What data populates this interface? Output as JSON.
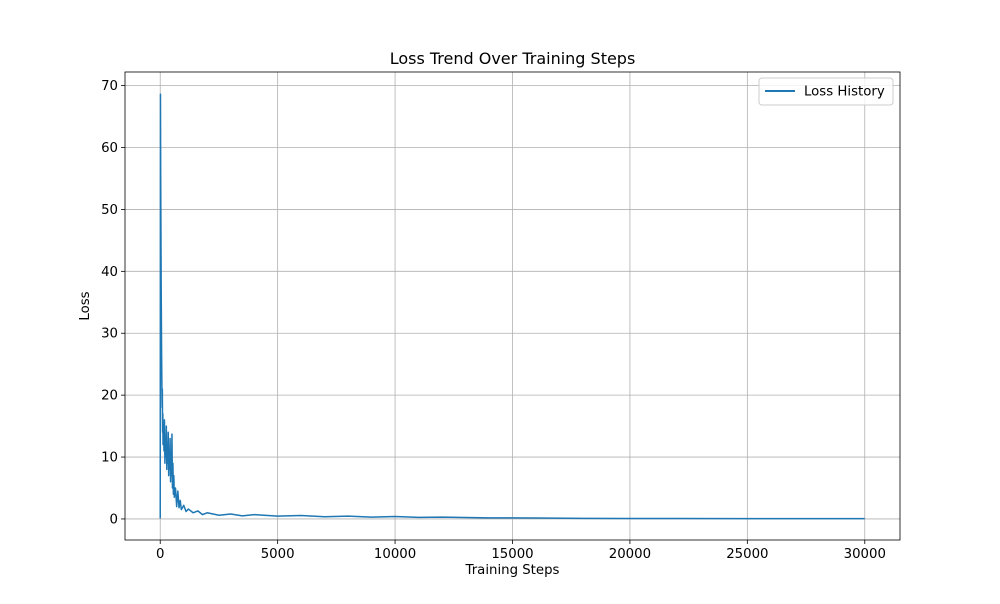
{
  "chart_data": {
    "type": "line",
    "title": "Loss Trend Over Training Steps",
    "xlabel": "Training Steps",
    "ylabel": "Loss",
    "xlim": [
      -1500,
      31500
    ],
    "ylim": [
      -3.4,
      72.2
    ],
    "xticks": [
      0,
      5000,
      10000,
      15000,
      20000,
      25000,
      30000
    ],
    "yticks": [
      0,
      10,
      20,
      30,
      40,
      50,
      60,
      70
    ],
    "grid": true,
    "legend_position": "upper-right",
    "series": [
      {
        "name": "Loss History",
        "color": "#1f77b4",
        "points": [
          [
            0,
            0.1
          ],
          [
            10,
            68.6
          ],
          [
            20,
            55
          ],
          [
            30,
            47
          ],
          [
            40,
            38
          ],
          [
            50,
            32
          ],
          [
            60,
            26
          ],
          [
            70,
            22
          ],
          [
            80,
            18
          ],
          [
            90,
            21
          ],
          [
            100,
            14
          ],
          [
            110,
            17
          ],
          [
            120,
            12
          ],
          [
            140,
            15
          ],
          [
            160,
            11
          ],
          [
            180,
            16
          ],
          [
            200,
            9
          ],
          [
            220,
            13
          ],
          [
            240,
            10
          ],
          [
            260,
            15
          ],
          [
            280,
            8
          ],
          [
            300,
            12
          ],
          [
            320,
            9
          ],
          [
            340,
            14
          ],
          [
            360,
            7
          ],
          [
            380,
            11
          ],
          [
            400,
            8
          ],
          [
            420,
            13
          ],
          [
            440,
            6
          ],
          [
            460,
            10
          ],
          [
            480,
            7
          ],
          [
            500,
            13.7
          ],
          [
            520,
            5
          ],
          [
            540,
            9
          ],
          [
            560,
            4
          ],
          [
            580,
            7
          ],
          [
            600,
            3.5
          ],
          [
            650,
            5
          ],
          [
            700,
            2
          ],
          [
            750,
            4.5
          ],
          [
            800,
            1.8
          ],
          [
            850,
            3
          ],
          [
            900,
            1.5
          ],
          [
            1000,
            2.2
          ],
          [
            1100,
            1.2
          ],
          [
            1200,
            1.6
          ],
          [
            1400,
            1.0
          ],
          [
            1600,
            1.3
          ],
          [
            1800,
            0.7
          ],
          [
            2000,
            1.0
          ],
          [
            2500,
            0.6
          ],
          [
            3000,
            0.8
          ],
          [
            3500,
            0.5
          ],
          [
            4000,
            0.7
          ],
          [
            5000,
            0.45
          ],
          [
            6000,
            0.55
          ],
          [
            7000,
            0.35
          ],
          [
            8000,
            0.45
          ],
          [
            9000,
            0.3
          ],
          [
            10000,
            0.4
          ],
          [
            11000,
            0.25
          ],
          [
            12000,
            0.3
          ],
          [
            14000,
            0.18
          ],
          [
            16000,
            0.15
          ],
          [
            18000,
            0.1
          ],
          [
            20000,
            0.08
          ],
          [
            22000,
            0.07
          ],
          [
            25000,
            0.06
          ],
          [
            28000,
            0.05
          ],
          [
            30000,
            0.05
          ]
        ]
      }
    ]
  }
}
